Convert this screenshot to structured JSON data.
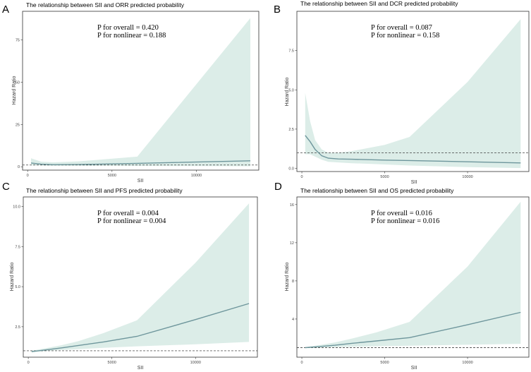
{
  "chart_data": [
    {
      "type": "line",
      "panel": "A",
      "title": "The relationship between SII and ORR predicted probability",
      "xlabel": "SII",
      "ylabel": "Hazard Ratio",
      "xlim": [
        -300,
        13700
      ],
      "ylim": [
        -2,
        92
      ],
      "xticks": [
        0,
        5000,
        10000
      ],
      "yticks": [
        0,
        25,
        50,
        75
      ],
      "annotations": [
        "P for overall = 0.420",
        "P for nonlinear = 0.188"
      ],
      "reference_line": 1,
      "series": [
        {
          "name": "Hazard Ratio",
          "x": [
            200,
            800,
            1500,
            3000,
            6500,
            13200
          ],
          "y": [
            2.2,
            1.5,
            1.2,
            1.3,
            2.0,
            3.5
          ]
        },
        {
          "name": "Upper CI",
          "x": [
            200,
            800,
            1500,
            3000,
            6500,
            13200
          ],
          "y": [
            5.0,
            3.0,
            2.6,
            3.2,
            6.0,
            88.0
          ]
        },
        {
          "name": "Lower CI",
          "x": [
            200,
            800,
            1500,
            3000,
            6500,
            13200
          ],
          "y": [
            0.8,
            0.7,
            0.6,
            0.6,
            0.5,
            0.3
          ]
        }
      ]
    },
    {
      "type": "line",
      "panel": "B",
      "title": "The relationship between SII and DCR predicted probability",
      "xlabel": "SII",
      "ylabel": "Hazard Ratio",
      "xlim": [
        -300,
        13700
      ],
      "ylim": [
        -0.2,
        10.0
      ],
      "xticks": [
        0,
        5000,
        10000
      ],
      "yticks": [
        0.0,
        2.5,
        5.0,
        7.5
      ],
      "annotations": [
        "P for overall = 0.087",
        "P for nonlinear = 0.158"
      ],
      "reference_line": 1,
      "series": [
        {
          "name": "Hazard Ratio",
          "x": [
            200,
            500,
            800,
            1200,
            1600,
            2200,
            3000,
            5000,
            6500,
            10000,
            13200
          ],
          "y": [
            2.1,
            1.7,
            1.2,
            0.8,
            0.65,
            0.6,
            0.58,
            0.53,
            0.5,
            0.42,
            0.35
          ]
        },
        {
          "name": "Upper CI",
          "x": [
            200,
            500,
            800,
            1200,
            1600,
            2200,
            3000,
            5000,
            6500,
            10000,
            13200
          ],
          "y": [
            4.8,
            3.0,
            1.8,
            1.2,
            1.0,
            1.0,
            1.1,
            1.5,
            2.0,
            5.5,
            9.5
          ]
        },
        {
          "name": "Lower CI",
          "x": [
            200,
            500,
            800,
            1200,
            1600,
            2200,
            3000,
            5000,
            6500,
            10000,
            13200
          ],
          "y": [
            0.9,
            0.9,
            0.75,
            0.55,
            0.42,
            0.38,
            0.33,
            0.25,
            0.18,
            0.08,
            0.02
          ]
        }
      ]
    },
    {
      "type": "line",
      "panel": "C",
      "title": "The relationship between SII and PFS predicted probability",
      "xlabel": "SII",
      "ylabel": "Hazard Ratio",
      "xlim": [
        -300,
        13700
      ],
      "ylim": [
        0.6,
        10.6
      ],
      "xticks": [
        0,
        5000,
        10000
      ],
      "yticks": [
        2.5,
        5.0,
        7.5,
        10.0
      ],
      "annotations": [
        "P for overall = 0.004",
        "P for nonlinear = 0.004"
      ],
      "reference_line": 1,
      "series": [
        {
          "name": "Hazard Ratio",
          "x": [
            200,
            1000,
            2000,
            3000,
            4500,
            6500,
            10000,
            13200
          ],
          "y": [
            0.95,
            1.05,
            1.18,
            1.33,
            1.55,
            1.9,
            2.95,
            3.95
          ]
        },
        {
          "name": "Upper CI",
          "x": [
            200,
            1000,
            2000,
            3000,
            4500,
            6500,
            10000,
            13200
          ],
          "y": [
            1.0,
            1.15,
            1.35,
            1.6,
            2.1,
            2.9,
            6.5,
            10.2
          ]
        },
        {
          "name": "Lower CI",
          "x": [
            200,
            1000,
            2000,
            3000,
            4500,
            6500,
            10000,
            13200
          ],
          "y": [
            0.9,
            0.98,
            1.05,
            1.1,
            1.18,
            1.28,
            1.4,
            1.55
          ]
        }
      ]
    },
    {
      "type": "line",
      "panel": "D",
      "title": "The relationship between SII and OS predicted probability",
      "xlabel": "SII",
      "ylabel": "Hazard Ratio",
      "xlim": [
        -300,
        13700
      ],
      "ylim": [
        0.0,
        16.8
      ],
      "xticks": [
        0,
        5000,
        10000
      ],
      "yticks": [
        4,
        8,
        12,
        16
      ],
      "annotations": [
        "P for overall = 0.016",
        "P for nonlinear = 0.016"
      ],
      "reference_line": 1,
      "series": [
        {
          "name": "Hazard Ratio",
          "x": [
            200,
            1000,
            2000,
            3000,
            4500,
            6500,
            10000,
            13200
          ],
          "y": [
            1.0,
            1.1,
            1.25,
            1.45,
            1.7,
            2.05,
            3.4,
            4.7
          ]
        },
        {
          "name": "Upper CI",
          "x": [
            200,
            1000,
            2000,
            3000,
            4500,
            6500,
            10000,
            13200
          ],
          "y": [
            1.05,
            1.25,
            1.55,
            1.95,
            2.6,
            3.7,
            9.5,
            16.3
          ]
        },
        {
          "name": "Lower CI",
          "x": [
            200,
            1000,
            2000,
            3000,
            4500,
            6500,
            10000,
            13200
          ],
          "y": [
            0.95,
            1.0,
            1.05,
            1.1,
            1.15,
            1.2,
            1.3,
            1.4
          ]
        }
      ]
    }
  ]
}
